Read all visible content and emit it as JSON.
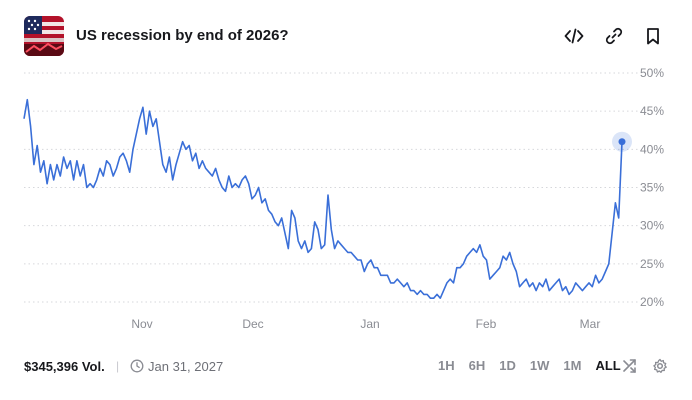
{
  "header": {
    "title": "US recession by end of 2026?",
    "thumbnail_icon": "us-flag-market-thumbnail",
    "actions": [
      {
        "name": "embed-icon"
      },
      {
        "name": "link-icon"
      },
      {
        "name": "bookmark-icon"
      }
    ]
  },
  "chart_data": {
    "type": "line",
    "x_tick_labels": [
      "Nov",
      "Dec",
      "Jan",
      "Feb",
      "Mar"
    ],
    "y_tick_labels": [
      "50%",
      "45%",
      "40%",
      "35%",
      "30%",
      "25%",
      "20%"
    ],
    "y_ticks": [
      50,
      45,
      40,
      35,
      30,
      25,
      20
    ],
    "ylim": [
      20,
      50
    ],
    "grid": "horizontal-dotted",
    "series_color": "#3a6fd8",
    "current_value": 41,
    "values": [
      44,
      46.5,
      43,
      38,
      40.5,
      37,
      38.5,
      35.5,
      38,
      36,
      38,
      36.5,
      39,
      37.5,
      38.5,
      36,
      38.5,
      36.5,
      38,
      35,
      35.5,
      35,
      36,
      37.5,
      36.5,
      38.5,
      38,
      36.5,
      37.5,
      39,
      39.5,
      38.5,
      37,
      40,
      42,
      44,
      45.5,
      42,
      45,
      43,
      44,
      41,
      38,
      37,
      39,
      36,
      38,
      39.5,
      41,
      40,
      40.5,
      38.5,
      39.5,
      37.5,
      38.5,
      37.5,
      37,
      36.5,
      37.5,
      36,
      35,
      34.5,
      36.5,
      35,
      35.5,
      35,
      36,
      36.5,
      35.5,
      33.5,
      34,
      35,
      33,
      33.5,
      32,
      31.5,
      30.5,
      30,
      31,
      29,
      27,
      32,
      31,
      28,
      27,
      28,
      26.5,
      27,
      30.5,
      29.5,
      27,
      27.5,
      34,
      29.5,
      27,
      28,
      27.5,
      27,
      26.5,
      26.5,
      26,
      25.5,
      25.5,
      24,
      25,
      25.5,
      24.5,
      24.5,
      23.5,
      23.5,
      23.5,
      22.5,
      22.5,
      23,
      22.5,
      22,
      22.5,
      21.5,
      21.5,
      21,
      21.5,
      21,
      21,
      20.5,
      20.5,
      21,
      20.5,
      21.5,
      22.5,
      23,
      22.5,
      24.5,
      24.5,
      25,
      26,
      26.5,
      27,
      26.5,
      27.5,
      26,
      25.5,
      23,
      23.5,
      24,
      24.5,
      26,
      25.5,
      26.5,
      25,
      24,
      22,
      22.5,
      23,
      22,
      22.5,
      21.5,
      22.5,
      22,
      23,
      21.5,
      22,
      22.5,
      23,
      21.5,
      22,
      21,
      21.5,
      22.5,
      22,
      21.5,
      22,
      22.5,
      22,
      23.5,
      22.5,
      23,
      24,
      25,
      29,
      33,
      31,
      41
    ]
  },
  "footer": {
    "volume": "$345,396 Vol.",
    "separator": "|",
    "end_date": "Jan 31, 2027",
    "ranges": [
      {
        "label": "1H",
        "active": false
      },
      {
        "label": "6H",
        "active": false
      },
      {
        "label": "1D",
        "active": false
      },
      {
        "label": "1W",
        "active": false
      },
      {
        "label": "1M",
        "active": false
      },
      {
        "label": "ALL",
        "active": true
      }
    ]
  }
}
